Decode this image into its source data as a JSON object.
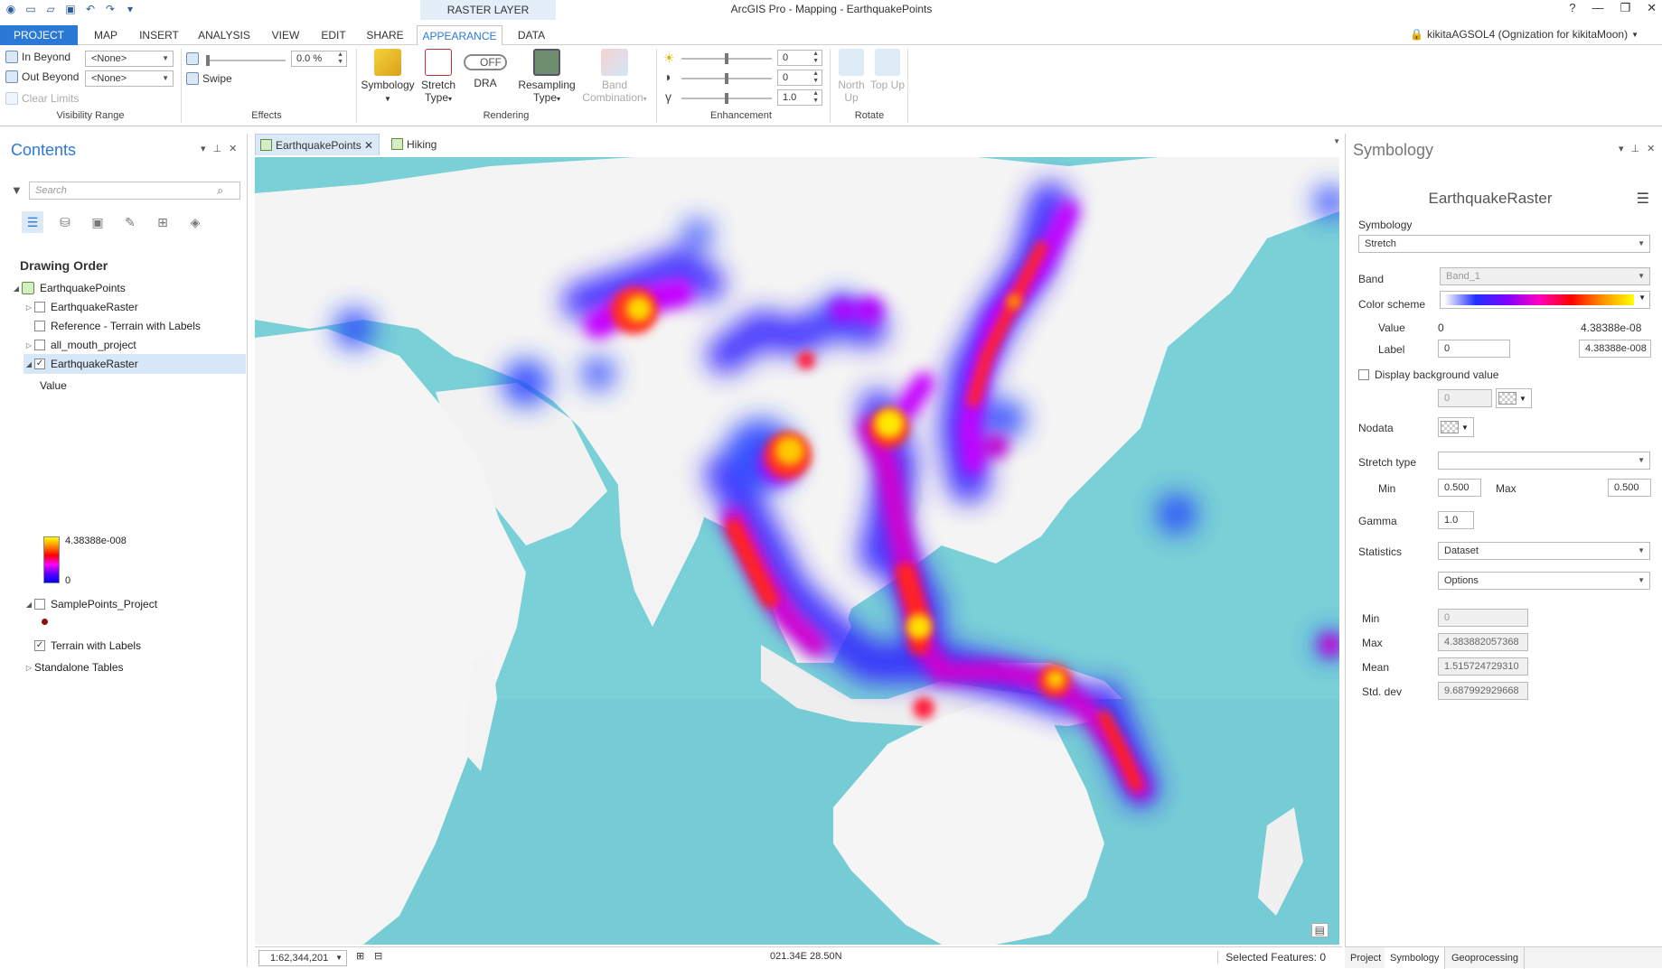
{
  "titlebar": {
    "context_label": "RASTER LAYER",
    "app_title": "ArcGIS Pro - Mapping - EarthquakePoints",
    "help": "?",
    "minimize": "—",
    "restore": "❐",
    "close": "✕"
  },
  "tabs": [
    "PROJECT",
    "MAP",
    "INSERT",
    "ANALYSIS",
    "VIEW",
    "EDIT",
    "SHARE",
    "APPEARANCE",
    "DATA"
  ],
  "user": "kikitaAGSOL4 (Ognization for kikitaMoon)",
  "ribbon": {
    "visibility": {
      "in_beyond": "In Beyond",
      "out_beyond": "Out Beyond",
      "in_value": "<None>",
      "out_value": "<None>",
      "clear_limits": "Clear Limits",
      "label": "Visibility Range"
    },
    "effects": {
      "transparency": "0.0 %",
      "transparency_value": 0,
      "swipe": "Swipe",
      "label": "Effects"
    },
    "rendering": {
      "symbology": "Symbology",
      "stretch_type": "Stretch Type",
      "dra": "DRA",
      "dra_toggle": "OFF",
      "resampling": "Resampling Type",
      "band_combination": "Band Combination",
      "label": "Rendering"
    },
    "enhancement": {
      "brightness": "0",
      "contrast": "0",
      "gamma": "1.0",
      "label": "Enhancement"
    },
    "rotate": {
      "north_up": "North Up",
      "top_up": "Top Up",
      "label": "Rotate"
    }
  },
  "contents": {
    "title": "Contents",
    "search_placeholder": "Search",
    "heading": "Drawing Order",
    "map_name": "EarthquakePoints",
    "layers": [
      {
        "name": "EarthquakeRaster",
        "checked": false
      },
      {
        "name": "Reference - Terrain with Labels",
        "checked": false
      },
      {
        "name": "all_mouth_project",
        "checked": false
      },
      {
        "name": "EarthquakeRaster",
        "checked": true
      },
      {
        "name": "SamplePoints_Project",
        "checked": false
      },
      {
        "name": "Terrain with Labels",
        "checked": true
      }
    ],
    "legend": {
      "field": "Value",
      "high": "4.38388e-008",
      "low": "0"
    },
    "standalone": "Standalone Tables"
  },
  "map": {
    "tabs": [
      "EarthquakePoints",
      "Hiking"
    ],
    "scale": "1:62,344,201",
    "coords": "021.34E 28.50N",
    "selected": "Selected Features: 0"
  },
  "symbology": {
    "title": "Symbology",
    "layer": "EarthquakeRaster",
    "symbology_label": "Symbology",
    "symbology_value": "Stretch",
    "band_label": "Band",
    "band_value": "Band_1",
    "color_scheme_label": "Color scheme",
    "value_label": "Value",
    "value_min": "0",
    "value_max": "4.38388e-08",
    "label_label": "Label",
    "label_min": "0",
    "label_max": "4.38388e-008",
    "display_bg": "Display background value",
    "bg_value": "0",
    "nodata_label": "Nodata",
    "stretch_type_label": "Stretch type",
    "stretch_type_value": "",
    "min_label": "Min",
    "min_value": "0.500",
    "max_label": "Max",
    "max_value": "0.500",
    "gamma_label": "Gamma",
    "gamma_value": "1.0",
    "statistics_label": "Statistics",
    "statistics_value": "Dataset",
    "options": "Options",
    "stats": [
      {
        "label": "Min",
        "value": "0"
      },
      {
        "label": "Max",
        "value": "4.383882057368"
      },
      {
        "label": "Mean",
        "value": "1.515724729310"
      },
      {
        "label": "Std. dev",
        "value": "9.687992929668"
      }
    ]
  },
  "bottom_tabs": [
    "Project",
    "Symbology",
    "Geoprocessing"
  ]
}
